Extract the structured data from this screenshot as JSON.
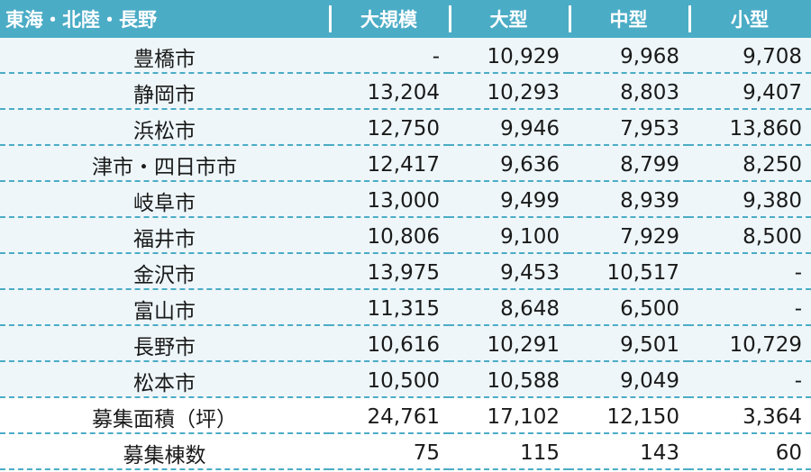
{
  "header": [
    "東海・北陸・長野",
    "大規模",
    "大型",
    "中型",
    "小型"
  ],
  "rows": [
    {
      "name": "豊橋市",
      "values": [
        "-",
        "10,929",
        "9,968",
        "9,708"
      ]
    },
    {
      "name": "静岡市",
      "values": [
        "13,204",
        "10,293",
        "8,803",
        "9,407"
      ]
    },
    {
      "name": "浜松市",
      "values": [
        "12,750",
        "9,946",
        "7,953",
        "13,860"
      ]
    },
    {
      "name": "津市・四日市市",
      "values": [
        "12,417",
        "9,636",
        "8,799",
        "8,250"
      ]
    },
    {
      "name": "岐阜市",
      "values": [
        "13,000",
        "9,499",
        "8,939",
        "9,380"
      ]
    },
    {
      "name": "福井市",
      "values": [
        "10,806",
        "9,100",
        "7,929",
        "8,500"
      ]
    },
    {
      "name": "金沢市",
      "values": [
        "13,975",
        "9,453",
        "10,517",
        "-"
      ]
    },
    {
      "name": "富山市",
      "values": [
        "11,315",
        "8,648",
        "6,500",
        "-"
      ]
    },
    {
      "name": "長野市",
      "values": [
        "10,616",
        "10,291",
        "9,501",
        "10,729"
      ]
    },
    {
      "name": "松本市",
      "values": [
        "10,500",
        "10,588",
        "9,049",
        "-"
      ]
    }
  ],
  "summary": [
    {
      "name": "募集面積（坪）",
      "values": [
        "24,761",
        "17,102",
        "12,150",
        "3,364"
      ]
    },
    {
      "name": "募集棟数",
      "values": [
        "75",
        "115",
        "143",
        "60"
      ]
    }
  ],
  "colors": {
    "header_bg": "#4bacc6",
    "row_shade": "#eef6f9",
    "divider": "#4bacc6"
  }
}
